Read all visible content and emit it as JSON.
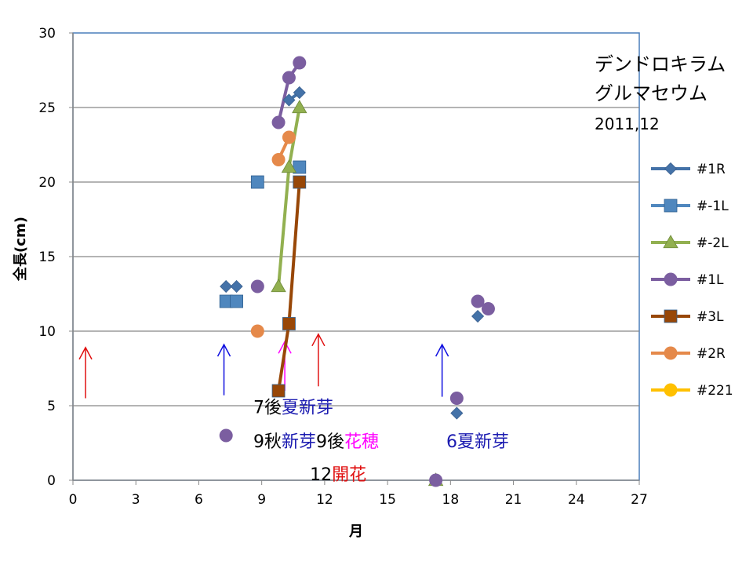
{
  "chart_data": {
    "type": "scatter",
    "title_lines": [
      "デンドロキラム",
      "グルマセウム"
    ],
    "subtitle": "2011,12",
    "xlabel": "月",
    "ylabel": "全長(cm)",
    "xlim": [
      0,
      27
    ],
    "ylim": [
      0,
      30
    ],
    "xticks": [
      0,
      3,
      6,
      9,
      12,
      15,
      18,
      21,
      24,
      27
    ],
    "yticks": [
      0,
      5,
      10,
      15,
      20,
      25,
      30
    ],
    "grid": "horizontal",
    "legend_position": "right",
    "series": [
      {
        "name": "#1R",
        "color": "#4472A8",
        "marker": "diamond",
        "points": [
          [
            7.3,
            13
          ],
          [
            7.8,
            13
          ],
          [
            10.3,
            25.5
          ],
          [
            10.8,
            26
          ],
          [
            18.3,
            4.5
          ],
          [
            19.3,
            11
          ]
        ],
        "connected": [
          [
            10.3,
            25.5
          ],
          [
            10.8,
            26
          ]
        ]
      },
      {
        "name": "#-1L",
        "color": "#4F87BE",
        "marker": "square",
        "points": [
          [
            7.3,
            12
          ],
          [
            7.8,
            12
          ],
          [
            8.8,
            20
          ],
          [
            10.8,
            21
          ]
        ],
        "connected": []
      },
      {
        "name": "#-2L",
        "color": "#92B050",
        "marker": "triangle",
        "points": [
          [
            9.8,
            13
          ],
          [
            10.3,
            21
          ],
          [
            10.8,
            25
          ],
          [
            17.3,
            0
          ]
        ],
        "connected": [
          [
            9.8,
            13
          ],
          [
            10.3,
            21
          ],
          [
            10.8,
            25
          ]
        ]
      },
      {
        "name": "#1L",
        "color": "#7B5EA0",
        "marker": "circle",
        "points": [
          [
            7.3,
            3
          ],
          [
            8.8,
            13
          ],
          [
            9.8,
            24
          ],
          [
            10.3,
            27
          ],
          [
            10.8,
            28
          ],
          [
            17.3,
            0
          ],
          [
            18.3,
            5.5
          ],
          [
            19.3,
            12
          ],
          [
            19.8,
            11.5
          ]
        ],
        "connected": [
          [
            9.8,
            24
          ],
          [
            10.3,
            27
          ],
          [
            10.8,
            28
          ]
        ]
      },
      {
        "name": "#3L",
        "color": "#984707",
        "marker": "square",
        "points": [
          [
            9.8,
            6
          ],
          [
            10.3,
            10.5
          ],
          [
            10.8,
            20
          ]
        ],
        "connected": [
          [
            9.8,
            6
          ],
          [
            10.3,
            10.5
          ],
          [
            10.8,
            20
          ]
        ]
      },
      {
        "name": "#2R",
        "color": "#E5894A",
        "marker": "circle",
        "points": [
          [
            8.8,
            10
          ],
          [
            9.8,
            21.5
          ],
          [
            10.3,
            23
          ]
        ],
        "connected": [
          [
            9.8,
            21.5
          ],
          [
            10.3,
            23
          ]
        ]
      },
      {
        "name": "#221",
        "color": "#FFC000",
        "marker": "circle",
        "points": [],
        "connected": []
      }
    ],
    "arrows": [
      {
        "x": 0.6,
        "y_from": 5.5,
        "y_to": 8.9,
        "color": "#E01010"
      },
      {
        "x": 7.2,
        "y_from": 5.7,
        "y_to": 9.1,
        "color": "#1010E0"
      },
      {
        "x": 10.1,
        "y_from": 6.0,
        "y_to": 9.3,
        "color": "#FF00FF"
      },
      {
        "x": 11.7,
        "y_from": 6.3,
        "y_to": 9.8,
        "color": "#E01010"
      },
      {
        "x": 17.6,
        "y_from": 5.6,
        "y_to": 9.1,
        "color": "#1010E0"
      }
    ],
    "annotations": [
      {
        "x": 8.6,
        "y": 4.5,
        "parts": [
          {
            "text": "7後",
            "color": "#000000"
          },
          {
            "text": "夏新芽",
            "color": "#1A1AB0"
          }
        ]
      },
      {
        "x": 8.6,
        "y": 2.2,
        "parts": [
          {
            "text": "9秋",
            "color": "#000000"
          },
          {
            "text": "新芽",
            "color": "#1A1AB0"
          },
          {
            "text": "9後",
            "color": "#000000"
          },
          {
            "text": "花穂",
            "color": "#FF00FF"
          }
        ]
      },
      {
        "x": 11.3,
        "y": 0.0,
        "parts": [
          {
            "text": "12",
            "color": "#000000"
          },
          {
            "text": "開花",
            "color": "#E01010"
          }
        ]
      },
      {
        "x": 17.8,
        "y": 2.2,
        "parts": [
          {
            "text": "6夏新芽",
            "color": "#1A1AB0"
          }
        ]
      }
    ]
  }
}
